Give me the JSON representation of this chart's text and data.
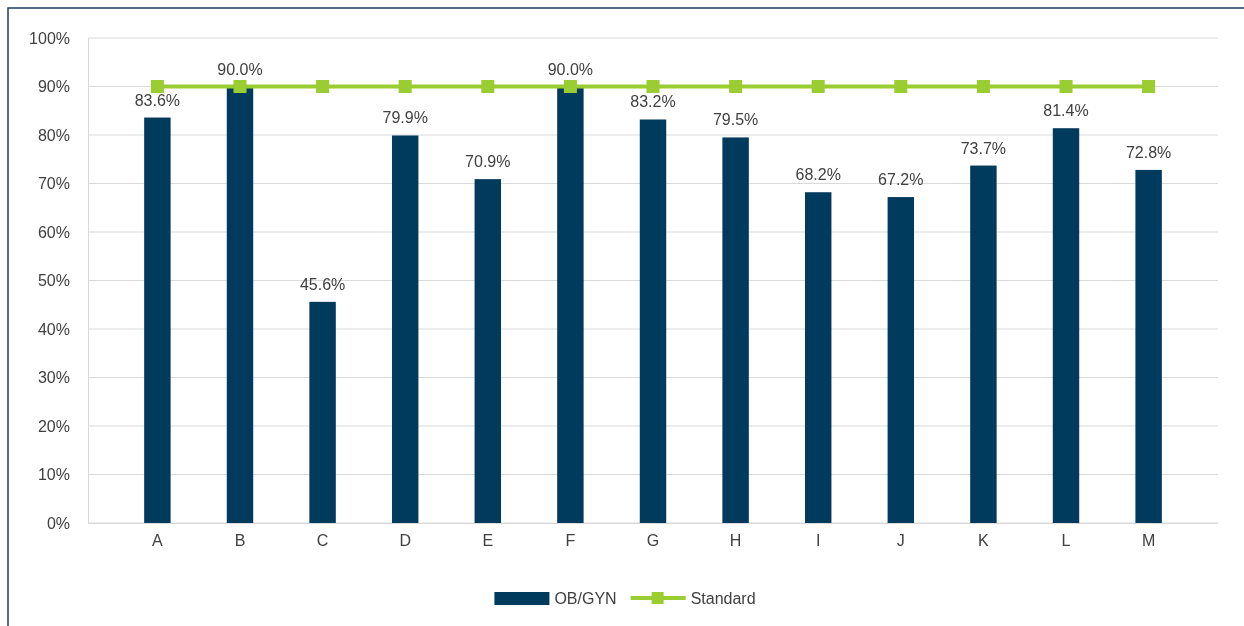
{
  "chart_data": {
    "type": "bar",
    "categories": [
      "A",
      "B",
      "C",
      "D",
      "E",
      "F",
      "G",
      "H",
      "I",
      "J",
      "K",
      "L",
      "M"
    ],
    "series": [
      {
        "name": "OB/GYN",
        "color": "#003a5d",
        "values": [
          83.6,
          90.0,
          45.6,
          79.9,
          70.9,
          90.0,
          83.2,
          79.5,
          68.2,
          67.2,
          73.7,
          81.4,
          72.8
        ],
        "value_labels": [
          "83.6%",
          "90.0%",
          "45.6%",
          "79.9%",
          "70.9%",
          "90.0%",
          "83.2%",
          "79.5%",
          "68.2%",
          "67.2%",
          "73.7%",
          "81.4%",
          "72.8%"
        ]
      },
      {
        "name": "Standard",
        "type": "line",
        "color": "#9acd32",
        "marker": "square",
        "values": [
          90,
          90,
          90,
          90,
          90,
          90,
          90,
          90,
          90,
          90,
          90,
          90,
          90
        ]
      }
    ],
    "ylim": [
      0,
      100
    ],
    "yticks": [
      {
        "value": 0,
        "label": "0%"
      },
      {
        "value": 10,
        "label": "10%"
      },
      {
        "value": 20,
        "label": "20%"
      },
      {
        "value": 30,
        "label": "30%"
      },
      {
        "value": 40,
        "label": "40%"
      },
      {
        "value": 50,
        "label": "50%"
      },
      {
        "value": 60,
        "label": "60%"
      },
      {
        "value": 70,
        "label": "70%"
      },
      {
        "value": 80,
        "label": "80%"
      },
      {
        "value": 90,
        "label": "90%"
      },
      {
        "value": 100,
        "label": "100%"
      }
    ],
    "grid": "y",
    "legend": "bottom"
  }
}
